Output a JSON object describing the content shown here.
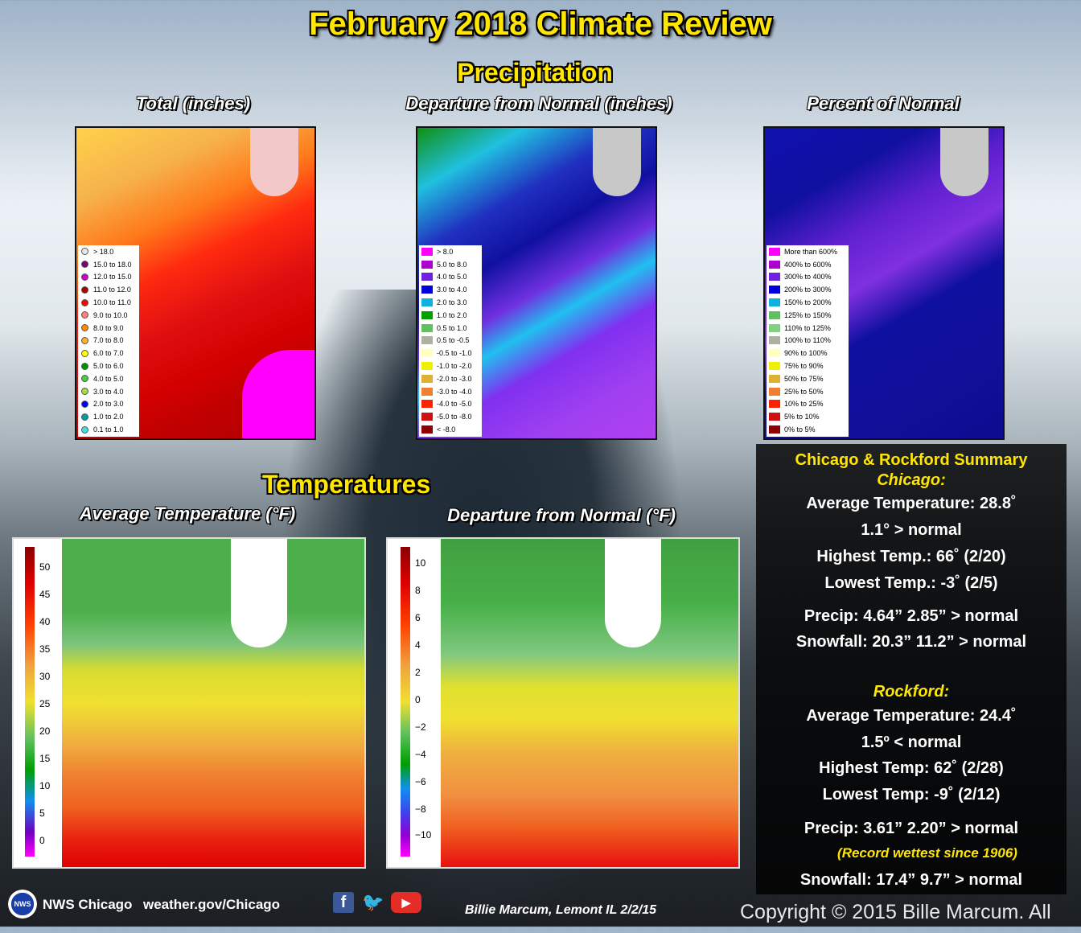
{
  "title": "February 2018 Climate Review",
  "precipitation": {
    "heading": "Precipitation",
    "maps": [
      {
        "title": "Total (inches)",
        "legend": [
          "> 18.0",
          "15.0 to 18.0",
          "12.0 to 15.0",
          "11.0 to 12.0",
          "10.0 to 11.0",
          "9.0 to 10.0",
          "8.0 to 9.0",
          "7.0 to 8.0",
          "6.0 to 7.0",
          "5.0 to 6.0",
          "4.0 to 5.0",
          "3.0 to 4.0",
          "2.0 to 3.0",
          "1.0 to 2.0",
          "0.1 to 1.0"
        ],
        "colors": [
          "#e8e8e8",
          "#7a007a",
          "#d000d0",
          "#b00000",
          "#ff0000",
          "#ff8080",
          "#ff8c00",
          "#ffb030",
          "#ffff00",
          "#009000",
          "#40d040",
          "#a0e040",
          "#0000ff",
          "#00a0a0",
          "#40e0e0"
        ]
      },
      {
        "title": "Departure from Normal (inches)",
        "legend": [
          "> 8.0",
          "5.0 to 8.0",
          "4.0 to 5.0",
          "3.0 to 4.0",
          "2.0 to 3.0",
          "1.0 to 2.0",
          "0.5 to 1.0",
          "0.5 to -0.5",
          "-0.5 to -1.0",
          "-1.0 to -2.0",
          "-2.0 to -3.0",
          "-3.0 to -4.0",
          "-4.0 to -5.0",
          "-5.0 to -8.0",
          "< -8.0"
        ],
        "colors": [
          "#ff00ff",
          "#b000d0",
          "#7020e0",
          "#0000e0",
          "#10b0e0",
          "#00a000",
          "#60c060",
          "#b0b0a0",
          "#ffffc0",
          "#f0f000",
          "#e0b030",
          "#f08030",
          "#ff2000",
          "#d01010",
          "#900000"
        ]
      },
      {
        "title": "Percent of Normal",
        "legend": [
          "More than 600%",
          "400% to 600%",
          "300% to 400%",
          "200% to 300%",
          "150% to 200%",
          "125% to 150%",
          "110% to 125%",
          "100% to 110%",
          "90% to 100%",
          "75% to 90%",
          "50% to 75%",
          "25% to 50%",
          "10% to 25%",
          "5% to 10%",
          "0% to 5%"
        ],
        "colors": [
          "#ff00ff",
          "#b000d0",
          "#7020e0",
          "#0000e0",
          "#10b0e0",
          "#60c060",
          "#80d080",
          "#b0b0a0",
          "#ffffc0",
          "#f0f000",
          "#e0b030",
          "#f08030",
          "#ff2000",
          "#d01010",
          "#900000"
        ]
      }
    ]
  },
  "temperatures": {
    "heading": "Temperatures",
    "maps": [
      {
        "title": "Average Temperature (°F)",
        "scale": [
          "50",
          "45",
          "40",
          "35",
          "30",
          "25",
          "20",
          "15",
          "10",
          "5",
          "0"
        ]
      },
      {
        "title": "Departure from Normal (°F)",
        "scale": [
          "10",
          "8",
          "6",
          "4",
          "2",
          "0",
          "−2",
          "−4",
          "−6",
          "−8",
          "−10"
        ]
      }
    ]
  },
  "summary": {
    "heading": "Chicago & Rockford Summary",
    "chicago": {
      "label": "Chicago:",
      "avg": "Average Temperature: 28.8˚",
      "avg_dep": "1.1° > normal",
      "high": "Highest Temp.: 66˚ (2/20)",
      "low": "Lowest Temp.: -3˚ (2/5)",
      "precip": "Precip: 4.64”   2.85” > normal",
      "snow": "Snowfall: 20.3”   11.2” > normal"
    },
    "rockford": {
      "label": "Rockford:",
      "avg": "Average Temperature: 24.4˚",
      "avg_dep": "1.5º < normal",
      "high": "Highest Temp: 62˚ (2/28)",
      "low": "Lowest Temp: -9˚ (2/12)",
      "precip": "Precip: 3.61”  2.20” > normal",
      "record": "(Record wettest since 1906)",
      "snow": "Snowfall: 17.4”  9.7” > normal"
    }
  },
  "footer": {
    "office": "NWS Chicago",
    "url": "weather.gov/Chicago",
    "photo_credit": "Billie Marcum, Lemont IL 2/2/15",
    "copyright": "Copyright © 2015 Bille Marcum. All"
  },
  "icons": [
    "nws-logo-icon",
    "facebook-icon",
    "twitter-icon",
    "youtube-icon"
  ]
}
